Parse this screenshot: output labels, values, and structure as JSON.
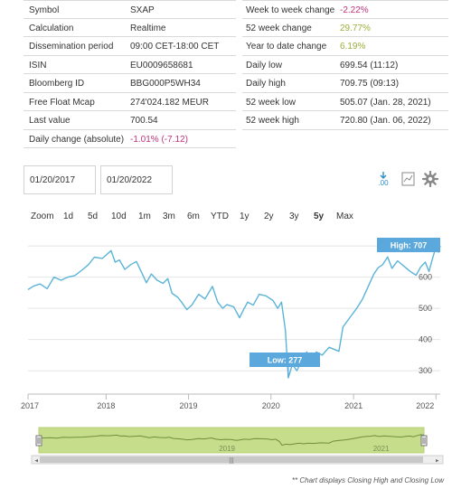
{
  "details_left": [
    {
      "key": "Symbol",
      "value": "SXAP"
    },
    {
      "key": "Calculation",
      "value": "Realtime"
    },
    {
      "key": "Dissemination period",
      "value": "09:00 CET-18:00 CET"
    },
    {
      "key": "ISIN",
      "value": "EU0009658681"
    },
    {
      "key": "Bloomberg ID",
      "value": "BBG000P5WH34"
    },
    {
      "key": "Free Float Mcap",
      "value": "274'024.182 MEUR"
    },
    {
      "key": "Last value",
      "value": "700.54"
    },
    {
      "key": "Daily change (absolute)",
      "value": "-1.01% (-7.12)"
    }
  ],
  "details_right": [
    {
      "key": "Week to week change",
      "value": "-2.22%"
    },
    {
      "key": "52 week change",
      "value": "29.77%"
    },
    {
      "key": "Year to date change",
      "value": "6.19%"
    },
    {
      "key": "Daily low",
      "value": "699.54 (11:12)"
    },
    {
      "key": "Daily high",
      "value": "709.75 (09:13)"
    },
    {
      "key": "52 week low",
      "value": "505.07 (Jan. 28, 2021)"
    },
    {
      "key": "52 week high",
      "value": "720.80 (Jan. 06, 2022)"
    }
  ],
  "date_from": "01/20/2017",
  "date_to": "01/20/2022",
  "toolbar_icons": [
    "download-icon",
    "chart-icon",
    "gear-icon"
  ],
  "range_buttons": [
    "Zoom",
    "1d",
    "5d",
    "10d",
    "1m",
    "3m",
    "6m",
    "YTD",
    "1y",
    "2y",
    "3y",
    "5y",
    "Max"
  ],
  "active_range": "5y",
  "footnote": "** Chart displays Closing High and Closing Low",
  "colors": {
    "line": "#5bb4d8",
    "flag": "#5aa8dc",
    "navigator_fill": "#c6dd8c",
    "negative": "#c0337a",
    "positive": "#9cae3a"
  },
  "chart_data": {
    "type": "line",
    "x_ticks": [
      "2017",
      "2018",
      "2019",
      "2020",
      "2021",
      "2022"
    ],
    "y_ticks": [
      300,
      400,
      500,
      600,
      700
    ],
    "ylim": [
      225,
      735
    ],
    "xlim": [
      "2017-01-20",
      "2022-01-20"
    ],
    "high_label": "High: 707",
    "low_label": "Low: 277",
    "navigator_labels": [
      "2019",
      "2021"
    ],
    "series": [
      {
        "points": [
          [
            "2017-01-20",
            560
          ],
          [
            "2017-02-15",
            572
          ],
          [
            "2017-03-15",
            578
          ],
          [
            "2017-04-15",
            563
          ],
          [
            "2017-05-15",
            600
          ],
          [
            "2017-06-15",
            590
          ],
          [
            "2017-07-15",
            600
          ],
          [
            "2017-08-15",
            605
          ],
          [
            "2017-09-15",
            622
          ],
          [
            "2017-10-15",
            640
          ],
          [
            "2017-11-10",
            664
          ],
          [
            "2017-12-15",
            660
          ],
          [
            "2018-01-23",
            685
          ],
          [
            "2018-02-10",
            648
          ],
          [
            "2018-03-01",
            655
          ],
          [
            "2018-03-25",
            625
          ],
          [
            "2018-04-20",
            640
          ],
          [
            "2018-05-15",
            650
          ],
          [
            "2018-06-10",
            610
          ],
          [
            "2018-06-28",
            582
          ],
          [
            "2018-07-20",
            610
          ],
          [
            "2018-08-15",
            590
          ],
          [
            "2018-09-10",
            580
          ],
          [
            "2018-10-01",
            595
          ],
          [
            "2018-10-20",
            548
          ],
          [
            "2018-11-15",
            535
          ],
          [
            "2018-12-01",
            520
          ],
          [
            "2018-12-24",
            496
          ],
          [
            "2019-01-15",
            510
          ],
          [
            "2019-02-15",
            545
          ],
          [
            "2019-03-15",
            530
          ],
          [
            "2019-04-17",
            570
          ],
          [
            "2019-05-10",
            520
          ],
          [
            "2019-06-01",
            500
          ],
          [
            "2019-06-20",
            512
          ],
          [
            "2019-07-20",
            505
          ],
          [
            "2019-08-15",
            470
          ],
          [
            "2019-09-05",
            500
          ],
          [
            "2019-09-20",
            520
          ],
          [
            "2019-10-15",
            510
          ],
          [
            "2019-11-10",
            545
          ],
          [
            "2019-12-10",
            540
          ],
          [
            "2020-01-10",
            525
          ],
          [
            "2020-01-31",
            500
          ],
          [
            "2020-02-17",
            520
          ],
          [
            "2020-03-05",
            430
          ],
          [
            "2020-03-18",
            277
          ],
          [
            "2020-04-05",
            320
          ],
          [
            "2020-04-25",
            300
          ],
          [
            "2020-05-15",
            330
          ],
          [
            "2020-06-08",
            360
          ],
          [
            "2020-06-28",
            335
          ],
          [
            "2020-07-20",
            360
          ],
          [
            "2020-08-15",
            350
          ],
          [
            "2020-09-15",
            375
          ],
          [
            "2020-10-28",
            362
          ],
          [
            "2020-11-15",
            440
          ],
          [
            "2020-12-15",
            470
          ],
          [
            "2021-01-15",
            500
          ],
          [
            "2021-02-10",
            530
          ],
          [
            "2021-03-10",
            575
          ],
          [
            "2021-04-01",
            610
          ],
          [
            "2021-04-20",
            630
          ],
          [
            "2021-05-10",
            640
          ],
          [
            "2021-06-01",
            665
          ],
          [
            "2021-06-20",
            628
          ],
          [
            "2021-07-15",
            652
          ],
          [
            "2021-08-20",
            630
          ],
          [
            "2021-09-10",
            618
          ],
          [
            "2021-10-05",
            606
          ],
          [
            "2021-10-25",
            632
          ],
          [
            "2021-11-15",
            648
          ],
          [
            "2021-12-01",
            618
          ],
          [
            "2021-12-20",
            668
          ],
          [
            "2022-01-06",
            707
          ],
          [
            "2022-01-12",
            680
          ],
          [
            "2022-01-20",
            700
          ]
        ]
      }
    ]
  }
}
